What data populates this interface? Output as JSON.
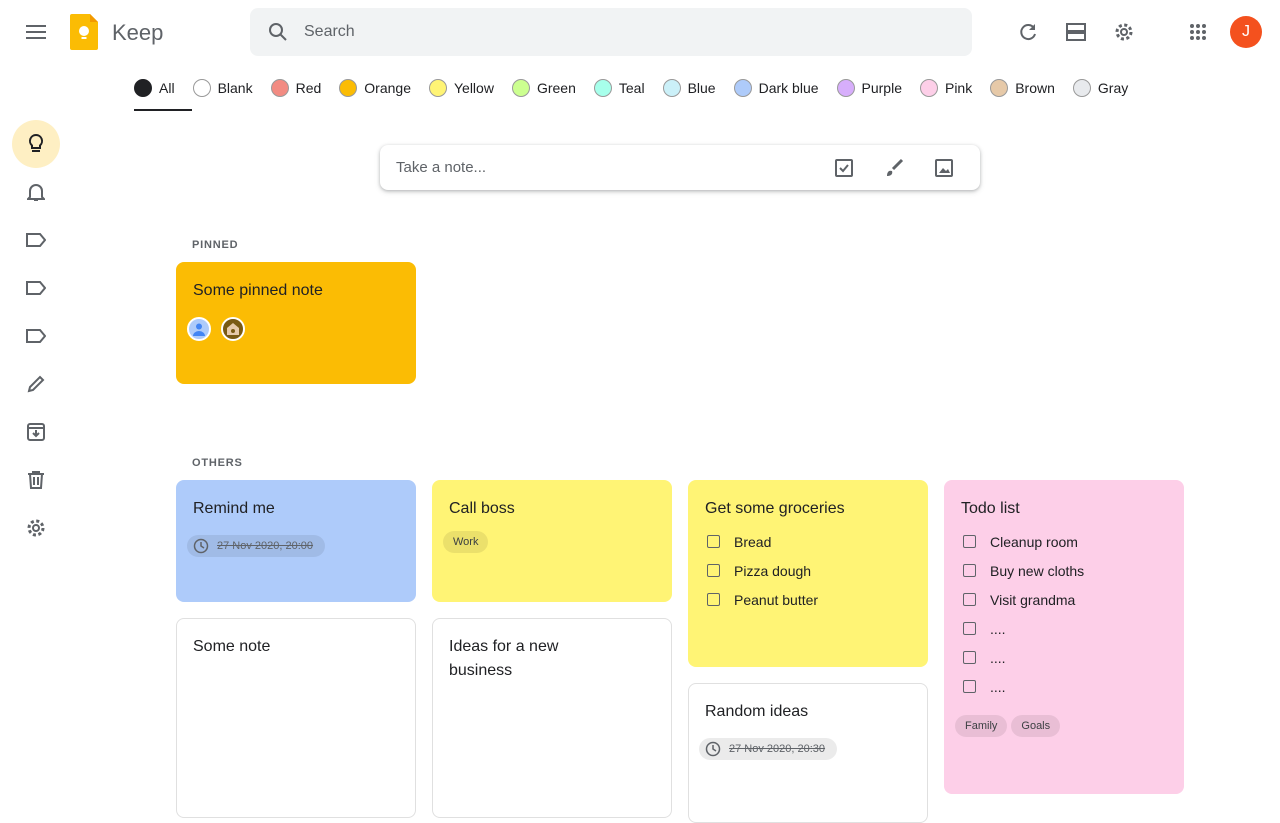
{
  "header": {
    "title": "Keep",
    "search_placeholder": "Search",
    "avatar_initial": "J"
  },
  "filters": [
    {
      "label": "All",
      "color": "#202124"
    },
    {
      "label": "Blank",
      "color": "#ffffff"
    },
    {
      "label": "Red",
      "color": "#f28b82"
    },
    {
      "label": "Orange",
      "color": "#fbbc04"
    },
    {
      "label": "Yellow",
      "color": "#fff475"
    },
    {
      "label": "Green",
      "color": "#ccff90"
    },
    {
      "label": "Teal",
      "color": "#a7ffeb"
    },
    {
      "label": "Blue",
      "color": "#cbf0f8"
    },
    {
      "label": "Dark blue",
      "color": "#aecbfa"
    },
    {
      "label": "Purple",
      "color": "#d7aefb"
    },
    {
      "label": "Pink",
      "color": "#fdcfe8"
    },
    {
      "label": "Brown",
      "color": "#e6c9a8"
    },
    {
      "label": "Gray",
      "color": "#e8eaed"
    }
  ],
  "take_note": {
    "placeholder": "Take a note..."
  },
  "sections": {
    "pinned": "PINNED",
    "others": "OTHERS"
  },
  "notes": {
    "pinned": {
      "title": "Some pinned note",
      "color": "#fbbc04"
    },
    "remind": {
      "title": "Remind me",
      "reminder": "27 Nov 2020, 20:00",
      "color": "#aecbfa"
    },
    "callboss": {
      "title": "Call boss",
      "labels": [
        "Work"
      ],
      "color": "#fff475"
    },
    "groceries": {
      "title": "Get some groceries",
      "items": [
        "Bread",
        "Pizza dough",
        "Peanut butter"
      ],
      "color": "#fff475"
    },
    "todo": {
      "title": "Todo list",
      "items": [
        "Cleanup room",
        "Buy new cloths",
        "Visit grandma",
        "....",
        "....",
        "...."
      ],
      "labels": [
        "Family",
        "Goals"
      ],
      "color": "#fdcfe8"
    },
    "somenote": {
      "title": "Some note"
    },
    "ideas": {
      "title": "Ideas for a new business"
    },
    "random": {
      "title": "Random ideas",
      "reminder": "27 Nov 2020, 20:30"
    }
  }
}
